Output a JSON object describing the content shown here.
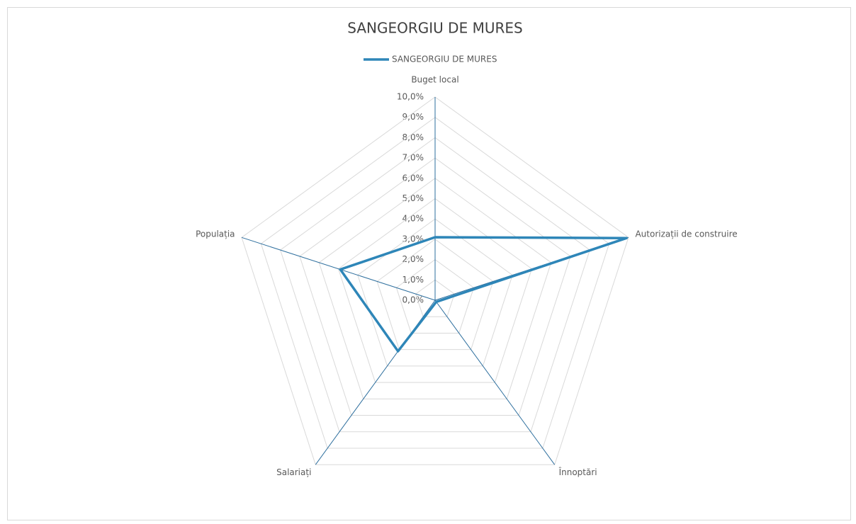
{
  "chart_data": {
    "type": "radar",
    "title": "SANGEORGIU DE MURES",
    "categories": [
      "Buget local",
      "Autorizații de construire",
      "Înnoptări",
      "Salariați",
      "Populația"
    ],
    "series": [
      {
        "name": "SANGEORGIU DE MURES",
        "color": "#2e86b8",
        "values": [
          3.1,
          9.9,
          0.1,
          3.1,
          4.9
        ]
      }
    ],
    "ylim": [
      0,
      10
    ],
    "yticks": [
      {
        "value": 0,
        "label": "0,0%"
      },
      {
        "value": 1,
        "label": "1,0%"
      },
      {
        "value": 2,
        "label": "2,0%"
      },
      {
        "value": 3,
        "label": "3,0%"
      },
      {
        "value": 4,
        "label": "4,0%"
      },
      {
        "value": 5,
        "label": "5,0%"
      },
      {
        "value": 6,
        "label": "6,0%"
      },
      {
        "value": 7,
        "label": "7,0%"
      },
      {
        "value": 8,
        "label": "8,0%"
      },
      {
        "value": 9,
        "label": "9,0%"
      },
      {
        "value": 10,
        "label": "10,0%"
      }
    ],
    "grid": true,
    "legend": "top",
    "axis_color": "#2e6f9e",
    "grid_color": "#d9d9d9"
  }
}
